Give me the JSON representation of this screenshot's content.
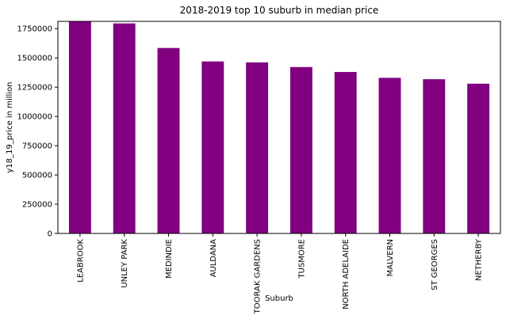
{
  "chart_data": {
    "type": "bar",
    "title": "2018-2019 top 10 suburb in median price",
    "xlabel": "Suburb",
    "ylabel": "y18_19_price in million",
    "categories": [
      "LEABROOK",
      "UNLEY PARK",
      "MEDINDIE",
      "AULDANA",
      "TOORAK GARDENS",
      "TUSMORE",
      "NORTH ADELAIDE",
      "MALVERN",
      "ST GEORGES",
      "NETHERBY"
    ],
    "values": [
      1810000,
      1795000,
      1585000,
      1470000,
      1462000,
      1422000,
      1380000,
      1330000,
      1318000,
      1280000
    ],
    "ylim": [
      0,
      1812500
    ],
    "yticks": [
      0,
      250000,
      500000,
      750000,
      1000000,
      1250000,
      1500000,
      1750000
    ],
    "ytick_labels": [
      "0",
      "250000",
      "500000",
      "750000",
      "1000000",
      "1250000",
      "1500000",
      "1750000"
    ],
    "bar_color": "#800080",
    "grid": false,
    "legend": "none"
  }
}
